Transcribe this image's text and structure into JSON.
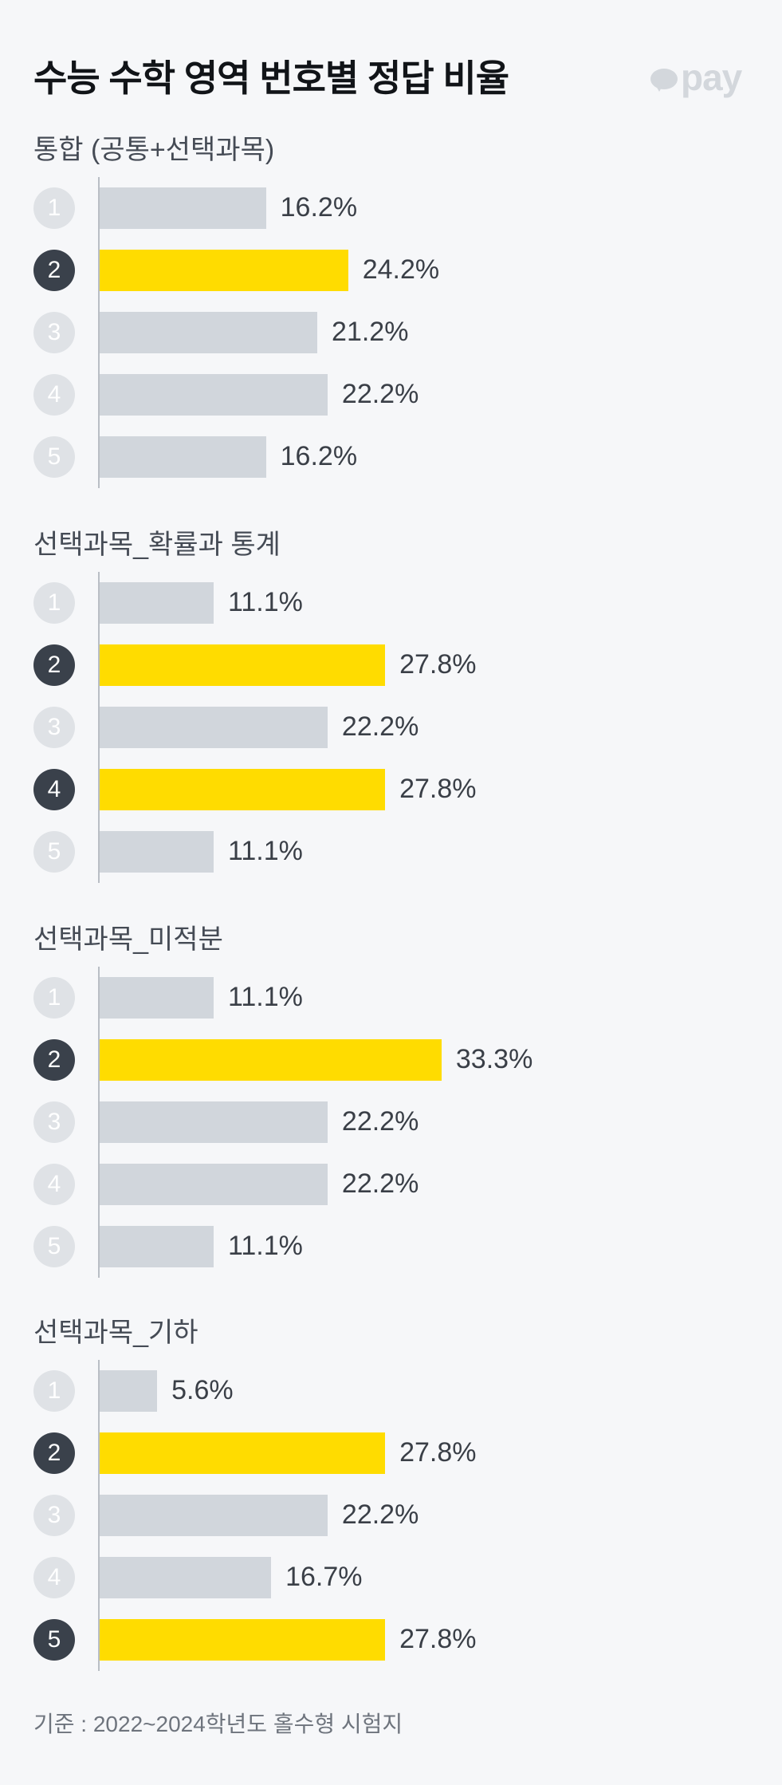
{
  "header": {
    "title": "수능 수학 영역 번호별 정답 비율",
    "logo_text": "pay"
  },
  "colors": {
    "highlight": "#FFDC00",
    "bar": "#D1D6DC",
    "badge_active": "#3A414B",
    "badge_inactive": "#DFE2E6"
  },
  "chart_data": [
    {
      "type": "bar",
      "orientation": "horizontal",
      "title": "통합 (공통+선택과목)",
      "categories": [
        "1",
        "2",
        "3",
        "4",
        "5"
      ],
      "values": [
        16.2,
        24.2,
        21.2,
        22.2,
        16.2
      ],
      "value_labels": [
        "16.2%",
        "24.2%",
        "21.2%",
        "22.2%",
        "16.2%"
      ],
      "highlighted": [
        2
      ]
    },
    {
      "type": "bar",
      "orientation": "horizontal",
      "title": "선택과목_확률과 통계",
      "categories": [
        "1",
        "2",
        "3",
        "4",
        "5"
      ],
      "values": [
        11.1,
        27.8,
        22.2,
        27.8,
        11.1
      ],
      "value_labels": [
        "11.1%",
        "27.8%",
        "22.2%",
        "27.8%",
        "11.1%"
      ],
      "highlighted": [
        2,
        4
      ]
    },
    {
      "type": "bar",
      "orientation": "horizontal",
      "title": "선택과목_미적분",
      "categories": [
        "1",
        "2",
        "3",
        "4",
        "5"
      ],
      "values": [
        11.1,
        33.3,
        22.2,
        22.2,
        11.1
      ],
      "value_labels": [
        "11.1%",
        "33.3%",
        "22.2%",
        "22.2%",
        "11.1%"
      ],
      "highlighted": [
        2
      ]
    },
    {
      "type": "bar",
      "orientation": "horizontal",
      "title": "선택과목_기하",
      "categories": [
        "1",
        "2",
        "3",
        "4",
        "5"
      ],
      "values": [
        5.6,
        27.8,
        22.2,
        16.7,
        27.8
      ],
      "value_labels": [
        "5.6%",
        "27.8%",
        "22.2%",
        "16.7%",
        "27.8%"
      ],
      "highlighted": [
        2,
        5
      ]
    }
  ],
  "footnote": "기준 : 2022~2024학년도 홀수형 시험지"
}
